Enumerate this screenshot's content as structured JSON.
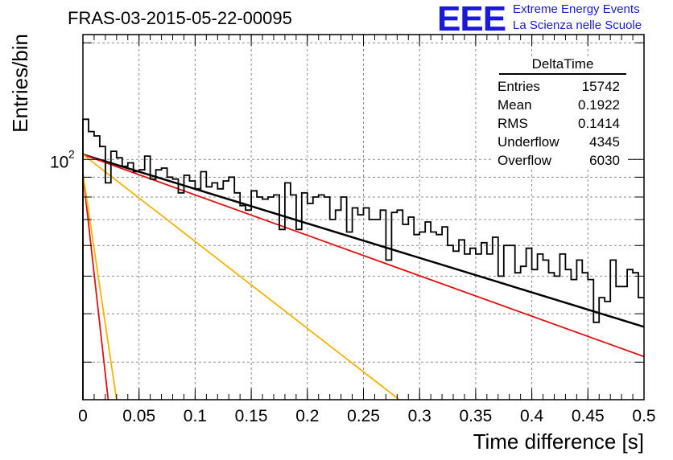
{
  "header": {
    "title": "FRAS-03-2015-05-22-00095",
    "logo_mark": "EEE",
    "logo_line1": "Extreme Energy Events",
    "logo_line2": "La Scienza nelle Scuole"
  },
  "stats_box": {
    "title": "DeltaTime",
    "rows": [
      {
        "label": "Entries",
        "value": "15742"
      },
      {
        "label": "Mean",
        "value": "0.1922"
      },
      {
        "label": "RMS",
        "value": "0.1414"
      },
      {
        "label": "Underflow",
        "value": "4345"
      },
      {
        "label": "Overflow",
        "value": "6030"
      }
    ]
  },
  "colors": {
    "histogram": "#000000",
    "total_fit": "#000000",
    "red_component": "#e01010",
    "yellow_component": "#f2b400",
    "grid": "#8c8c8c",
    "logo": "#1a1ad8"
  },
  "chart_data": {
    "type": "line",
    "title": "FRAS-03-2015-05-22-00095",
    "xlabel": "Time difference [s]",
    "ylabel": "Entries/bin",
    "xlim": [
      0,
      0.5
    ],
    "ylim": [
      24,
      210
    ],
    "ylog": true,
    "grid": true,
    "xticks": [
      "0",
      "0.05",
      "0.1",
      "0.15",
      "0.2",
      "0.25",
      "0.3",
      "0.35",
      "0.4",
      "0.45",
      "0.5"
    ],
    "yticks": [
      "10^2"
    ],
    "histogram": {
      "bin_width": 0.005,
      "x_start": 0,
      "values": [
        127,
        118,
        115,
        108,
        87,
        105,
        101,
        96,
        98,
        93,
        94,
        102,
        89,
        94,
        95,
        90,
        89,
        82,
        91,
        88,
        84,
        93,
        85,
        87,
        84,
        88,
        90,
        82,
        76,
        74,
        83,
        80,
        79,
        80,
        81,
        66,
        87,
        81,
        66,
        82,
        77,
        80,
        81,
        80,
        70,
        74,
        80,
        65,
        75,
        72,
        75,
        70,
        70,
        74,
        55,
        73,
        74,
        68,
        71,
        64,
        65,
        69,
        65,
        64,
        67,
        60,
        58,
        62,
        57,
        59,
        57,
        61,
        57,
        63,
        50,
        60,
        60,
        51,
        53,
        59,
        52,
        57,
        55,
        51,
        50,
        57,
        52,
        49,
        55,
        51,
        49,
        38,
        44,
        43,
        55,
        47,
        47,
        52,
        51,
        44
      ]
    },
    "series": [
      {
        "name": "",
        "color": "black",
        "x": [
          0,
          0.5
        ],
        "y": [
          103,
          37
        ]
      },
      {
        "name": "",
        "color": "red",
        "x": [
          0,
          0.5
        ],
        "y": [
          103,
          31
        ]
      },
      {
        "name": "",
        "color": "red",
        "x": [
          0,
          0.0225
        ],
        "y": [
          92,
          24
        ]
      },
      {
        "name": "",
        "color": "yellow",
        "x": [
          0,
          0.03
        ],
        "y": [
          92,
          24
        ]
      },
      {
        "name": "",
        "color": "yellow",
        "x": [
          0,
          0.282
        ],
        "y": [
          103,
          24
        ]
      }
    ]
  }
}
